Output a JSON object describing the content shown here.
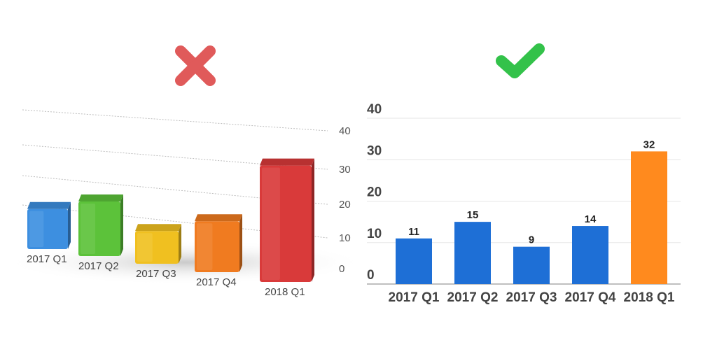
{
  "chart_data": [
    {
      "type": "bar",
      "style": "3d",
      "categories": [
        "2017 Q1",
        "2017 Q2",
        "2017 Q3",
        "2017 Q4",
        "2018 Q1"
      ],
      "values": [
        11,
        15,
        9,
        14,
        32
      ],
      "colors": [
        "#3d8fe0",
        "#5cc23a",
        "#f0c020",
        "#f07b20",
        "#d93a3a"
      ],
      "y_ticks": [
        "0",
        "10",
        "20",
        "30",
        "40"
      ],
      "ylim": [
        0,
        40
      ],
      "grid": true,
      "marker": {
        "symbol": "cross",
        "color": "#e05a5a"
      }
    },
    {
      "type": "bar",
      "categories": [
        "2017 Q1",
        "2017 Q2",
        "2017 Q3",
        "2017 Q4",
        "2018 Q1"
      ],
      "values": [
        11,
        15,
        9,
        14,
        32
      ],
      "data_labels": [
        "11",
        "15",
        "9",
        "14",
        "32"
      ],
      "colors": [
        "#1e6fd6",
        "#1e6fd6",
        "#1e6fd6",
        "#1e6fd6",
        "#ff8a1e"
      ],
      "y_ticks": [
        "0",
        "10",
        "20",
        "30",
        "40"
      ],
      "ylim": [
        0,
        40
      ],
      "grid": true,
      "marker": {
        "symbol": "check",
        "color": "#33c24a"
      }
    }
  ]
}
